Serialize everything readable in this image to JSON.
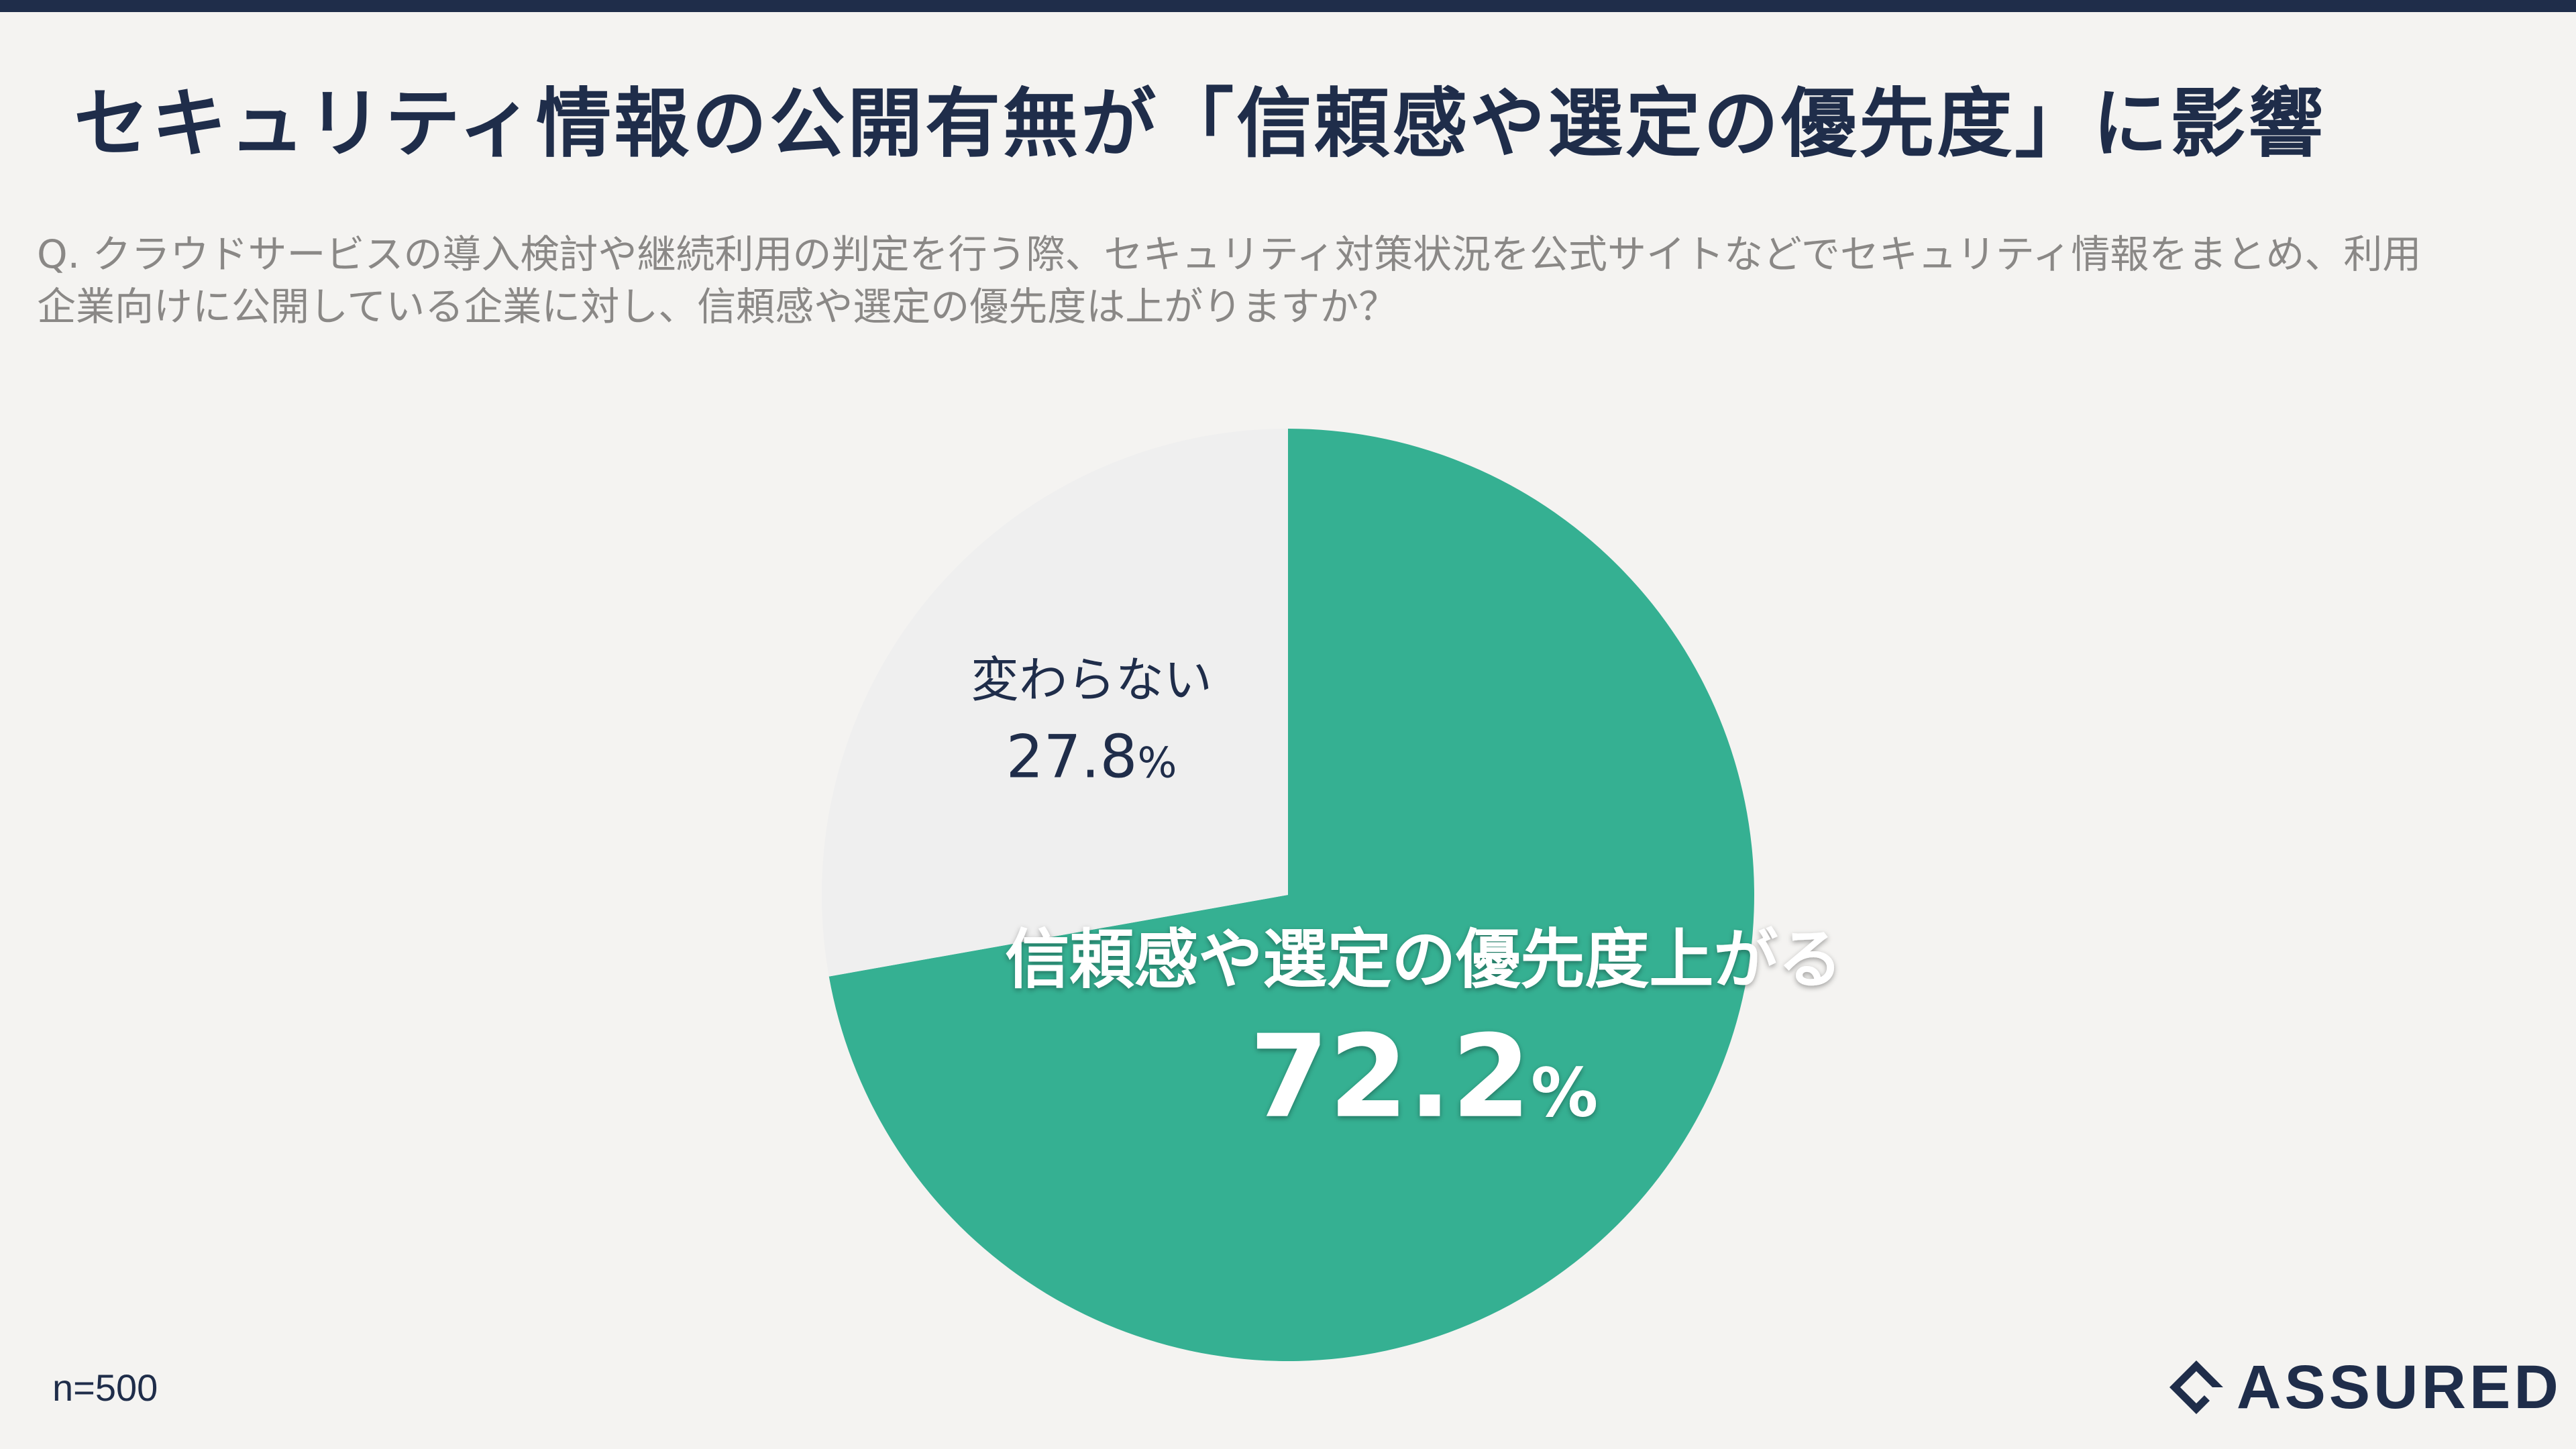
{
  "header": {
    "title": "セキュリティ情報の公開有無が「信頼感や選定の優先度」に影響",
    "question_line1": "Q. クラウドサービスの導入検討や継続利用の判定を行う際、セキュリティ対策状況を公式サイトなどでセキュリティ情報をまとめ、利用",
    "question_line2": "企業向けに公開している企業に対し、信頼感や選定の優先度は上がりますか？"
  },
  "chart_data": {
    "type": "pie",
    "slices": [
      {
        "label": "信頼感や選定の優先度上がる",
        "value": 72.2,
        "value_label": "72.2",
        "unit": "%",
        "color": "#35b092"
      },
      {
        "label": "変わらない",
        "value": 27.8,
        "value_label": "27.8",
        "unit": "%",
        "color": "#efefef"
      }
    ]
  },
  "footer": {
    "sample_size": "n=500",
    "brand": "ASSURED"
  },
  "colors": {
    "navy": "#1f2d4a",
    "teal": "#35b092",
    "light": "#efefef",
    "background": "#f4f3f1"
  },
  "icons": {
    "brand_logo": "assured-logo-icon"
  }
}
